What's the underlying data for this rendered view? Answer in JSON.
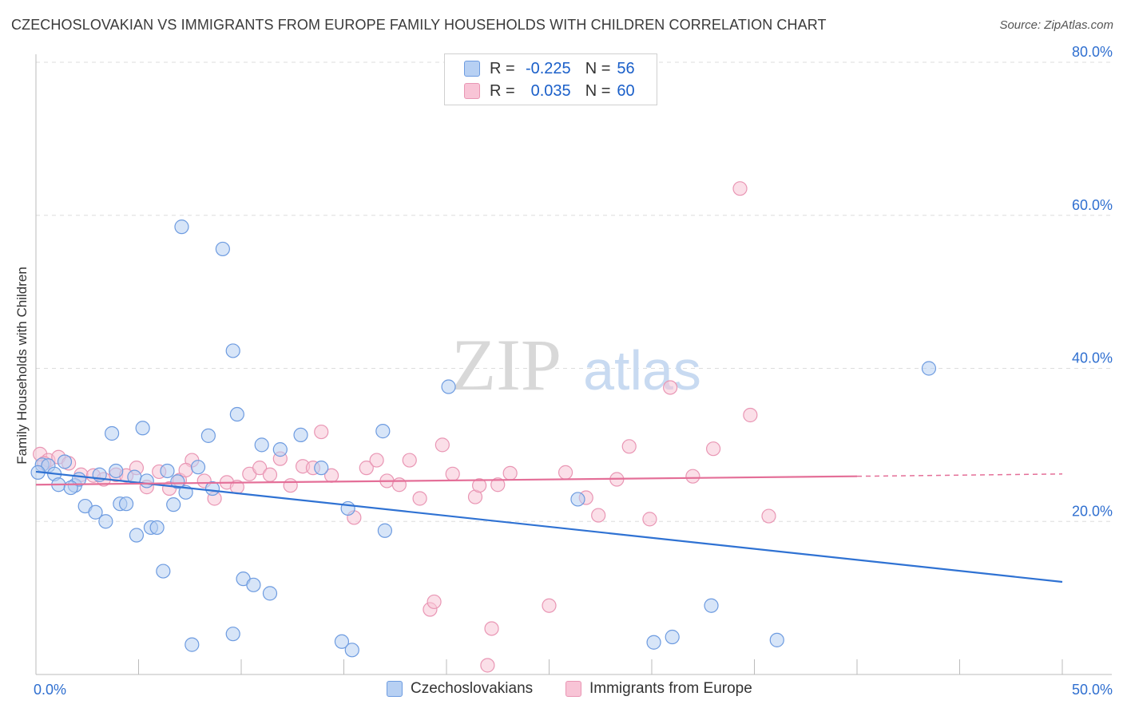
{
  "header": {
    "title": "CZECHOSLOVAKIAN VS IMMIGRANTS FROM EUROPE FAMILY HOUSEHOLDS WITH CHILDREN CORRELATION CHART",
    "source": "Source: ZipAtlas.com"
  },
  "watermark": {
    "zip": "ZIP",
    "atlas": "atlas"
  },
  "legend_top": {
    "rows": [
      {
        "r_label": "R =",
        "r_value": "-0.225",
        "n_label": "N =",
        "n_value": "56"
      },
      {
        "r_label": "R =",
        "r_value": "0.035",
        "n_label": "N =",
        "n_value": "60"
      }
    ]
  },
  "legend_bottom": {
    "items": [
      {
        "label": "Czechoslovakians"
      },
      {
        "label": "Immigrants from Europe"
      }
    ]
  },
  "chart_data": {
    "type": "scatter",
    "title": "CZECHOSLOVAKIAN VS IMMIGRANTS FROM EUROPE FAMILY HOUSEHOLDS WITH CHILDREN CORRELATION CHART",
    "xlabel": "",
    "ylabel": "Family Households with Children",
    "xlim": [
      0,
      50
    ],
    "ylim": [
      0,
      80
    ],
    "x_tick_labels": [
      "0.0%",
      "50.0%"
    ],
    "y_ticks": [
      20,
      40,
      60,
      80
    ],
    "y_tick_labels": [
      "20.0%",
      "40.0%",
      "60.0%",
      "80.0%"
    ],
    "grid": true,
    "legend_position": "bottom",
    "colors": {
      "blue_fill": "#b7d0f3",
      "blue_stroke": "#6d9be0",
      "blue_line": "#2f72d3",
      "pink_fill": "#f8c4d6",
      "pink_stroke": "#e996b4",
      "pink_line": "#e46f98",
      "tick_text": "#2f6fd0",
      "grid": "#dddddd"
    },
    "series": [
      {
        "name": "Czechoslovakians",
        "color": "#6d9be0",
        "trend": {
          "x": [
            0,
            50
          ],
          "y": [
            26.5,
            12.1
          ]
        },
        "points": [
          [
            0.3,
            27.4
          ],
          [
            0.6,
            27.3
          ],
          [
            0.9,
            26.2
          ],
          [
            1.1,
            24.8
          ],
          [
            1.4,
            27.8
          ],
          [
            1.9,
            24.7
          ],
          [
            2.1,
            25.5
          ],
          [
            2.4,
            22.0
          ],
          [
            2.9,
            21.2
          ],
          [
            3.1,
            26.1
          ],
          [
            3.4,
            20.0
          ],
          [
            3.7,
            31.5
          ],
          [
            3.9,
            26.6
          ],
          [
            4.1,
            22.3
          ],
          [
            4.4,
            22.3
          ],
          [
            4.8,
            25.8
          ],
          [
            4.9,
            18.2
          ],
          [
            5.2,
            32.2
          ],
          [
            5.4,
            25.3
          ],
          [
            5.6,
            19.2
          ],
          [
            5.9,
            19.2
          ],
          [
            6.2,
            13.5
          ],
          [
            6.4,
            26.6
          ],
          [
            6.7,
            22.2
          ],
          [
            6.9,
            25.2
          ],
          [
            7.1,
            58.5
          ],
          [
            7.3,
            23.8
          ],
          [
            7.6,
            3.9
          ],
          [
            7.9,
            27.1
          ],
          [
            8.4,
            31.2
          ],
          [
            8.6,
            24.3
          ],
          [
            9.1,
            55.6
          ],
          [
            9.6,
            42.3
          ],
          [
            9.6,
            5.3
          ],
          [
            9.8,
            34.0
          ],
          [
            10.1,
            12.5
          ],
          [
            10.6,
            11.7
          ],
          [
            11.0,
            30.0
          ],
          [
            11.4,
            10.6
          ],
          [
            11.9,
            29.4
          ],
          [
            12.9,
            31.3
          ],
          [
            13.9,
            27.0
          ],
          [
            14.9,
            4.3
          ],
          [
            15.2,
            21.7
          ],
          [
            15.4,
            3.2
          ],
          [
            16.9,
            31.8
          ],
          [
            17.0,
            18.8
          ],
          [
            20.1,
            37.6
          ],
          [
            26.4,
            22.9
          ],
          [
            30.1,
            4.2
          ],
          [
            31.0,
            4.9
          ],
          [
            32.9,
            9.0
          ],
          [
            36.1,
            4.5
          ],
          [
            43.5,
            40.0
          ],
          [
            0.1,
            26.4
          ],
          [
            1.7,
            24.4
          ]
        ]
      },
      {
        "name": "Immigrants from Europe",
        "color": "#e996b4",
        "trend": {
          "x": [
            0,
            40
          ],
          "y": [
            24.8,
            25.9
          ]
        },
        "trend_dashed": {
          "x": [
            40,
            50
          ],
          "y": [
            25.9,
            26.2
          ]
        },
        "points": [
          [
            0.2,
            28.8
          ],
          [
            0.6,
            28.0
          ],
          [
            1.1,
            28.4
          ],
          [
            1.6,
            27.6
          ],
          [
            2.2,
            26.1
          ],
          [
            2.8,
            26.0
          ],
          [
            3.3,
            25.5
          ],
          [
            3.9,
            26.1
          ],
          [
            4.4,
            26.0
          ],
          [
            4.9,
            27.0
          ],
          [
            5.4,
            24.5
          ],
          [
            6.0,
            26.5
          ],
          [
            6.5,
            24.3
          ],
          [
            7.0,
            25.4
          ],
          [
            7.6,
            28.0
          ],
          [
            8.2,
            25.3
          ],
          [
            8.7,
            23.0
          ],
          [
            9.3,
            25.1
          ],
          [
            9.8,
            24.5
          ],
          [
            10.4,
            26.2
          ],
          [
            10.9,
            27.0
          ],
          [
            11.4,
            26.1
          ],
          [
            11.9,
            28.2
          ],
          [
            12.4,
            24.7
          ],
          [
            13.0,
            27.2
          ],
          [
            13.5,
            27.0
          ],
          [
            13.9,
            31.7
          ],
          [
            14.4,
            26.0
          ],
          [
            15.5,
            20.5
          ],
          [
            16.1,
            27.0
          ],
          [
            16.6,
            28.0
          ],
          [
            17.1,
            25.3
          ],
          [
            17.7,
            24.8
          ],
          [
            18.2,
            28.0
          ],
          [
            18.7,
            23.0
          ],
          [
            19.2,
            8.5
          ],
          [
            19.4,
            9.5
          ],
          [
            19.8,
            30.0
          ],
          [
            20.3,
            26.2
          ],
          [
            21.4,
            23.2
          ],
          [
            21.6,
            24.7
          ],
          [
            22.0,
            1.2
          ],
          [
            22.2,
            6.0
          ],
          [
            22.5,
            24.8
          ],
          [
            23.1,
            26.3
          ],
          [
            25.0,
            9.0
          ],
          [
            25.8,
            26.4
          ],
          [
            26.8,
            23.1
          ],
          [
            27.4,
            20.8
          ],
          [
            28.3,
            25.5
          ],
          [
            28.9,
            29.8
          ],
          [
            29.9,
            20.3
          ],
          [
            30.9,
            37.5
          ],
          [
            32.0,
            25.9
          ],
          [
            33.0,
            29.5
          ],
          [
            34.3,
            63.5
          ],
          [
            34.8,
            33.9
          ],
          [
            35.7,
            20.7
          ],
          [
            0.4,
            27.6
          ],
          [
            7.3,
            26.7
          ]
        ]
      }
    ]
  }
}
